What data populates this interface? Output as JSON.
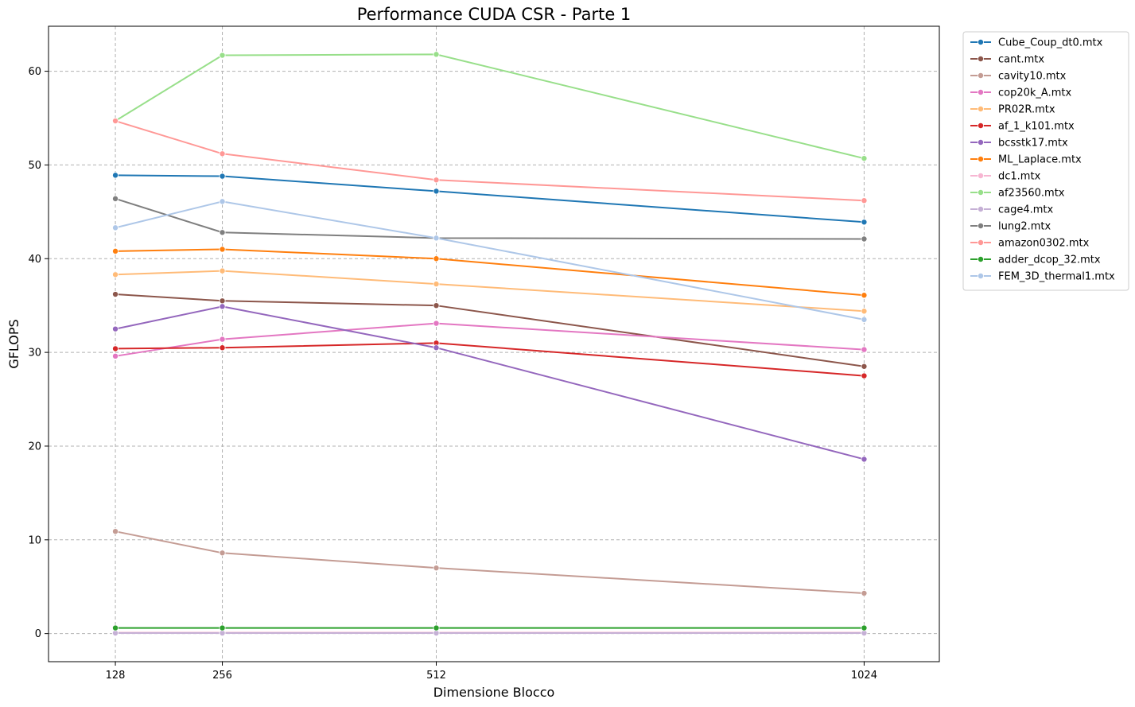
{
  "chart_data": {
    "type": "line",
    "title": "Performance CUDA CSR - Parte 1",
    "xlabel": "Dimensione Blocco",
    "ylabel": "GFLOPS",
    "x": [
      128,
      256,
      512,
      1024
    ],
    "x_tick_labels": [
      "128",
      "256",
      "512",
      "1024"
    ],
    "xlim": [
      48,
      1114
    ],
    "ylim": [
      -3,
      64.8
    ],
    "y_ticks": [
      0,
      10,
      20,
      30,
      40,
      50,
      60
    ],
    "grid": true,
    "legend_position": "outside-top-right",
    "series": [
      {
        "name": "Cube_Coup_dt0.mtx",
        "color": "#1f77b4",
        "values": [
          48.9,
          48.8,
          47.2,
          43.9
        ]
      },
      {
        "name": "cant.mtx",
        "color": "#8c564b",
        "values": [
          36.2,
          35.5,
          35.0,
          28.5
        ]
      },
      {
        "name": "cavity10.mtx",
        "color": "#c49c94",
        "values": [
          10.9,
          8.6,
          7.0,
          4.3
        ]
      },
      {
        "name": "cop20k_A.mtx",
        "color": "#e377c2",
        "values": [
          29.6,
          31.4,
          33.1,
          30.3
        ]
      },
      {
        "name": "PR02R.mtx",
        "color": "#ffbb78",
        "values": [
          38.3,
          38.7,
          37.3,
          34.4
        ]
      },
      {
        "name": "af_1_k101.mtx",
        "color": "#d62728",
        "values": [
          30.4,
          30.5,
          31.0,
          27.5
        ]
      },
      {
        "name": "bcsstk17.mtx",
        "color": "#9467bd",
        "values": [
          32.5,
          34.9,
          30.5,
          18.6
        ]
      },
      {
        "name": "ML_Laplace.mtx",
        "color": "#ff7f0e",
        "values": [
          40.8,
          41.0,
          40.0,
          36.1
        ]
      },
      {
        "name": "dc1.mtx",
        "color": "#f7b6d2",
        "values": [
          0.1,
          0.1,
          0.1,
          0.1
        ]
      },
      {
        "name": "af23560.mtx",
        "color": "#98df8a",
        "values": [
          54.7,
          61.7,
          61.8,
          50.7
        ]
      },
      {
        "name": "cage4.mtx",
        "color": "#c5b0d5",
        "values": [
          0.05,
          0.05,
          0.05,
          0.05
        ]
      },
      {
        "name": "lung2.mtx",
        "color": "#7f7f7f",
        "values": [
          46.4,
          42.8,
          42.2,
          42.1
        ]
      },
      {
        "name": "amazon0302.mtx",
        "color": "#ff9896",
        "values": [
          54.7,
          51.2,
          48.4,
          46.2
        ]
      },
      {
        "name": "adder_dcop_32.mtx",
        "color": "#2ca02c",
        "values": [
          0.6,
          0.6,
          0.6,
          0.6
        ]
      },
      {
        "name": "FEM_3D_thermal1.mtx",
        "color": "#aec7e8",
        "values": [
          43.3,
          46.1,
          42.2,
          33.5
        ]
      }
    ]
  }
}
